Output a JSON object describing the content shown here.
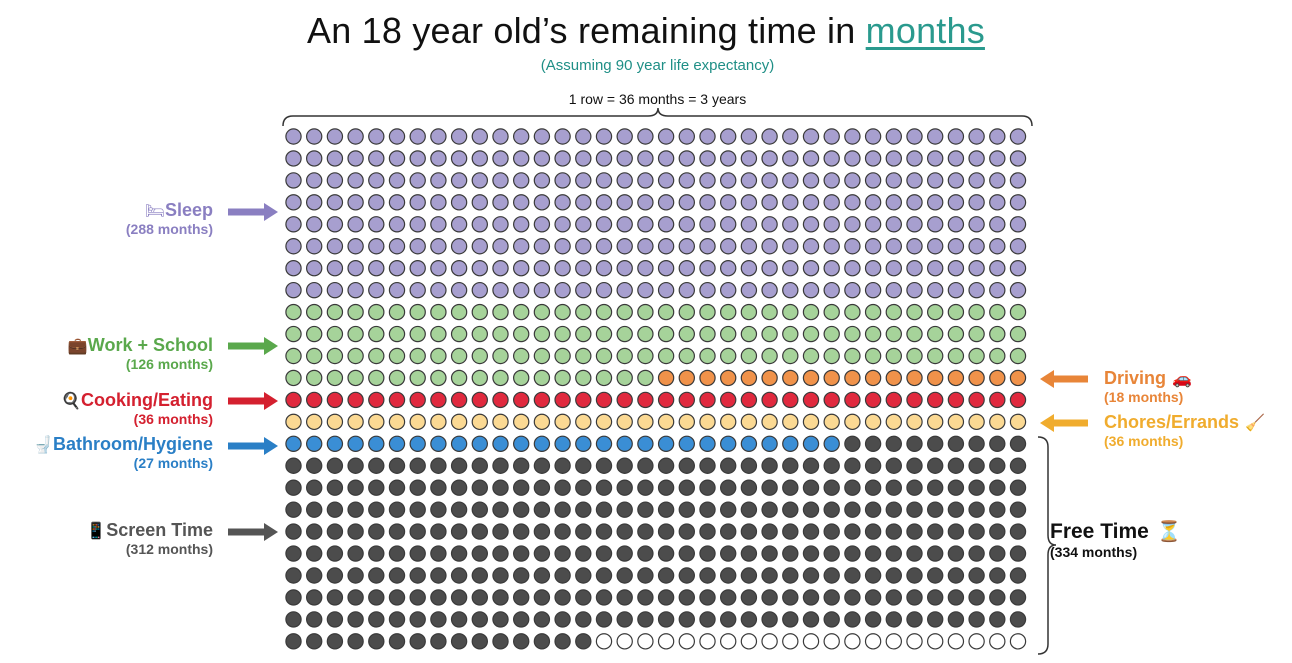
{
  "header": {
    "title_prefix": "An 18 year old’s remaining time in ",
    "title_highlight": "months",
    "subtitle": "(Assuming 90 year life expectancy)",
    "row_note": "1 row = 36 months = 3 years"
  },
  "chart_data": {
    "type": "waffle",
    "columns": 36,
    "rows": 24,
    "total_months": 864,
    "categories": [
      {
        "name": "Sleep",
        "count_label": "(288 months)",
        "months": 288,
        "color": "#a79fcf",
        "icon": "bed-icon",
        "glyph": "🛏",
        "side": "left"
      },
      {
        "name": "Work + School",
        "count_label": "(126 months)",
        "months": 126,
        "color": "#a6d39a",
        "icon": "briefcase-icon",
        "glyph": "💼",
        "side": "left"
      },
      {
        "name": "Driving",
        "count_label": "(18 months)",
        "months": 18,
        "color": "#f0924a",
        "icon": "car-icon",
        "glyph": "🚗",
        "side": "right"
      },
      {
        "name": "Cooking/Eating",
        "count_label": "(36 months)",
        "months": 36,
        "color": "#e0293e",
        "icon": "cook-icon",
        "glyph": "🍳",
        "side": "left"
      },
      {
        "name": "Chores/Errands",
        "count_label": "(36 months)",
        "months": 36,
        "color": "#fbd993",
        "icon": "broom-icon",
        "glyph": "🧹",
        "side": "right"
      },
      {
        "name": "Bathroom/Hygiene",
        "count_label": "(27 months)",
        "months": 27,
        "color": "#3a8ed5",
        "icon": "toilet-icon",
        "glyph": "🚽",
        "side": "left"
      },
      {
        "name": "Screen Time",
        "count_label": "(312 months)",
        "months": 312,
        "color": "#4c4c4c",
        "icon": "phone-icon",
        "glyph": "📱",
        "side": "left"
      },
      {
        "name": "",
        "months": 21,
        "color": "#ffffff"
      }
    ],
    "free_time": {
      "name": "Free Time",
      "count_label": "(334 months)",
      "months": 334,
      "icon": "hourglass-icon",
      "glyph": "⏳"
    },
    "label_colors": {
      "Sleep": "#8a7fc1",
      "Work + School": "#5aa84c",
      "Driving": "#e88538",
      "Cooking/Eating": "#d4202f",
      "Chores/Errands": "#f0ac2e",
      "Bathroom/Hygiene": "#2a7fc6",
      "Screen Time": "#555555"
    }
  }
}
